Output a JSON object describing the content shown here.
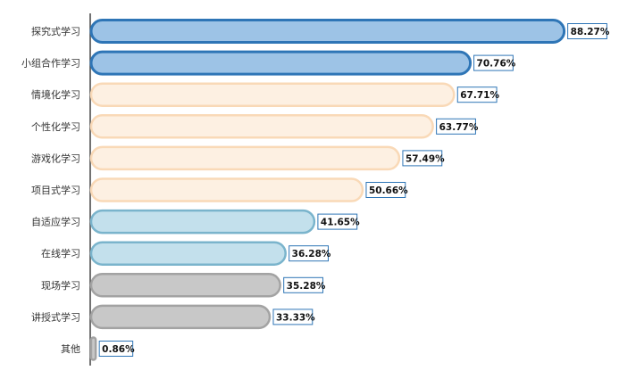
{
  "chart_data": {
    "type": "bar",
    "orientation": "horizontal",
    "categories": [
      "探究式学习",
      "小组合作学习",
      "情境化学习",
      "个性化学习",
      "游戏化学习",
      "项目式学习",
      "自适应学习",
      "在线学习",
      "现场学习",
      "讲授式学习",
      "其他"
    ],
    "values": [
      88.27,
      70.76,
      67.71,
      63.77,
      57.49,
      50.66,
      41.65,
      36.28,
      35.28,
      33.33,
      0.86
    ],
    "value_labels": [
      "88.27%",
      "70.76%",
      "67.71%",
      "63.77%",
      "57.49%",
      "50.66%",
      "41.65%",
      "36.28%",
      "35.28%",
      "33.33%",
      "0.86%"
    ],
    "bar_styles": [
      "blue-strong",
      "blue-strong",
      "peach",
      "peach",
      "peach",
      "peach",
      "light-blue",
      "light-blue",
      "gray",
      "gray",
      "gray"
    ],
    "xlim": [
      0,
      100
    ],
    "title": "",
    "xlabel": "",
    "ylabel": "",
    "grid": false,
    "legend": "none"
  },
  "colors": {
    "blue-strong": {
      "fill": "#9dc3e6",
      "stroke": "#2e75b6"
    },
    "peach": {
      "fill": "#fdf0e2",
      "stroke": "#f9d9b7"
    },
    "light-blue": {
      "fill": "#c3e0ec",
      "stroke": "#7ab4cc"
    },
    "gray": {
      "fill": "#c8c8c8",
      "stroke": "#a3a3a3"
    },
    "axis": "#444444",
    "label_box_stroke": "#2e75b6"
  }
}
